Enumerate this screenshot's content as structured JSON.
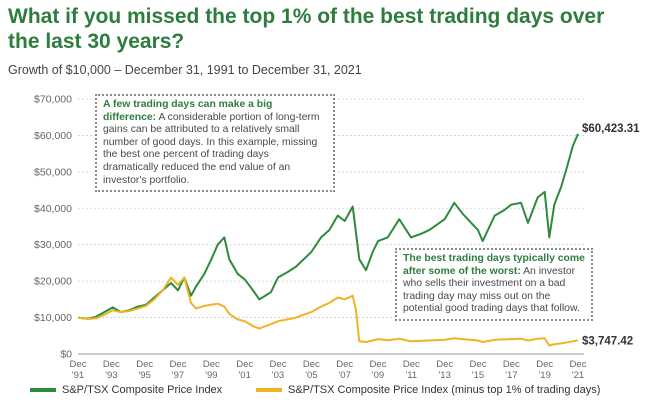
{
  "header": {
    "title": "What if you missed the top 1% of the best trading days over the last 30 years?",
    "subtitle": "Growth of $10,000 – December 31, 1991 to December 31, 2021"
  },
  "callouts": [
    {
      "highlight": "A few trading days can make a big difference:",
      "body": " A considerable portion of long-term gains can be attributed to a relatively small number of good days. In this example, missing the best one percent of trading days dramatically reduced the end value of an investor's portfolio."
    },
    {
      "highlight": "The best trading days typically come after some of the worst:",
      "body": " An investor who sells their investment on a bad trading day may miss out on the potential good trading days that follow."
    }
  ],
  "colors": {
    "green": "#2e8b3e",
    "gold": "#f0b323",
    "title": "#2e7d3e"
  },
  "chart_data": {
    "type": "line",
    "title": "What if you missed the top 1% of the best trading days over the last 30 years?",
    "subtitle": "Growth of $10,000 – December 31, 1991 to December 31, 2021",
    "ylim": [
      0,
      70000
    ],
    "xlim": [
      1991.92,
      2021.92
    ],
    "y_ticks": [
      {
        "value": 0,
        "label": "$0"
      },
      {
        "value": 10000,
        "label": "$10,000"
      },
      {
        "value": 20000,
        "label": "$20,000"
      },
      {
        "value": 30000,
        "label": "$30,000"
      },
      {
        "value": 40000,
        "label": "$40,000"
      },
      {
        "value": 50000,
        "label": "$50,000"
      },
      {
        "value": 60000,
        "label": "$60,000"
      },
      {
        "value": 70000,
        "label": "$70,000"
      }
    ],
    "x_ticks": [
      {
        "value": 1991.92,
        "line1": "Dec",
        "line2": "'91"
      },
      {
        "value": 1993.92,
        "line1": "Dec",
        "line2": "'93"
      },
      {
        "value": 1995.92,
        "line1": "Dec",
        "line2": "'95"
      },
      {
        "value": 1997.92,
        "line1": "Dec",
        "line2": "'97"
      },
      {
        "value": 1999.92,
        "line1": "Dec",
        "line2": "'99"
      },
      {
        "value": 2001.92,
        "line1": "Dec",
        "line2": "'01"
      },
      {
        "value": 2003.92,
        "line1": "Dec",
        "line2": "'03"
      },
      {
        "value": 2005.92,
        "line1": "Dec",
        "line2": "'05"
      },
      {
        "value": 2007.92,
        "line1": "Dec",
        "line2": "'07"
      },
      {
        "value": 2009.92,
        "line1": "Dec",
        "line2": "'09"
      },
      {
        "value": 2011.92,
        "line1": "Dec",
        "line2": "'11"
      },
      {
        "value": 2013.92,
        "line1": "Dec",
        "line2": "'13"
      },
      {
        "value": 2015.92,
        "line1": "Dec",
        "line2": "'15"
      },
      {
        "value": 2017.92,
        "line1": "Dec",
        "line2": "'17"
      },
      {
        "value": 2019.92,
        "line1": "Dec",
        "line2": "'19"
      },
      {
        "value": 2021.92,
        "line1": "Dec",
        "line2": "'21"
      }
    ],
    "grid": "horizontal dotted",
    "legend_position": "bottom",
    "series": [
      {
        "name": "S&P/TSX Composite Price Index",
        "color": "#2e8b3e",
        "end_label": "$60,423.31",
        "points": [
          [
            1991.92,
            10000
          ],
          [
            1992.5,
            9700
          ],
          [
            1993.0,
            10200
          ],
          [
            1993.5,
            11500
          ],
          [
            1994.0,
            12800
          ],
          [
            1994.5,
            11500
          ],
          [
            1995.0,
            12000
          ],
          [
            1995.5,
            13000
          ],
          [
            1996.0,
            13500
          ],
          [
            1996.5,
            15500
          ],
          [
            1997.0,
            17500
          ],
          [
            1997.5,
            19500
          ],
          [
            1997.92,
            17500
          ],
          [
            1998.3,
            21000
          ],
          [
            1998.7,
            16000
          ],
          [
            1999.0,
            18500
          ],
          [
            1999.5,
            22000
          ],
          [
            1999.92,
            26000
          ],
          [
            2000.3,
            30000
          ],
          [
            2000.7,
            32000
          ],
          [
            2001.0,
            26000
          ],
          [
            2001.5,
            22000
          ],
          [
            2001.92,
            20500
          ],
          [
            2002.5,
            17000
          ],
          [
            2002.8,
            15000
          ],
          [
            2003.5,
            17000
          ],
          [
            2003.92,
            21000
          ],
          [
            2004.5,
            22500
          ],
          [
            2005.0,
            24000
          ],
          [
            2005.92,
            28000
          ],
          [
            2006.5,
            32000
          ],
          [
            2007.0,
            34000
          ],
          [
            2007.5,
            38000
          ],
          [
            2007.92,
            36500
          ],
          [
            2008.4,
            40500
          ],
          [
            2008.8,
            26000
          ],
          [
            2009.2,
            23000
          ],
          [
            2009.6,
            28000
          ],
          [
            2009.92,
            31000
          ],
          [
            2010.5,
            32000
          ],
          [
            2011.2,
            37000
          ],
          [
            2011.9,
            32000
          ],
          [
            2012.5,
            33000
          ],
          [
            2013.0,
            34000
          ],
          [
            2013.92,
            37000
          ],
          [
            2014.5,
            41500
          ],
          [
            2015.0,
            38500
          ],
          [
            2015.92,
            34000
          ],
          [
            2016.2,
            31000
          ],
          [
            2016.92,
            38000
          ],
          [
            2017.5,
            39500
          ],
          [
            2017.92,
            41000
          ],
          [
            2018.5,
            41500
          ],
          [
            2018.92,
            36000
          ],
          [
            2019.5,
            43000
          ],
          [
            2019.92,
            44500
          ],
          [
            2020.2,
            32000
          ],
          [
            2020.5,
            41000
          ],
          [
            2020.92,
            46000
          ],
          [
            2021.3,
            52000
          ],
          [
            2021.6,
            57000
          ],
          [
            2021.92,
            60423.31
          ]
        ]
      },
      {
        "name": "S&P/TSX Composite Price Index (minus top 1% of trading days)",
        "color": "#f0b323",
        "end_label": "$3,747.42",
        "points": [
          [
            1991.92,
            10000
          ],
          [
            1992.5,
            9600
          ],
          [
            1993.0,
            9800
          ],
          [
            1993.5,
            10800
          ],
          [
            1994.0,
            12000
          ],
          [
            1994.5,
            11500
          ],
          [
            1995.0,
            11800
          ],
          [
            1995.5,
            12500
          ],
          [
            1996.0,
            13200
          ],
          [
            1996.5,
            15000
          ],
          [
            1997.0,
            17500
          ],
          [
            1997.5,
            21000
          ],
          [
            1997.92,
            19000
          ],
          [
            1998.3,
            21000
          ],
          [
            1998.7,
            14000
          ],
          [
            1999.0,
            12500
          ],
          [
            1999.5,
            13200
          ],
          [
            1999.92,
            13500
          ],
          [
            2000.3,
            13800
          ],
          [
            2000.7,
            13000
          ],
          [
            2001.0,
            11000
          ],
          [
            2001.5,
            9500
          ],
          [
            2001.92,
            9000
          ],
          [
            2002.5,
            7500
          ],
          [
            2002.8,
            7000
          ],
          [
            2003.5,
            8200
          ],
          [
            2003.92,
            9000
          ],
          [
            2004.5,
            9500
          ],
          [
            2005.0,
            10000
          ],
          [
            2005.92,
            11500
          ],
          [
            2006.5,
            13000
          ],
          [
            2007.0,
            14000
          ],
          [
            2007.5,
            15500
          ],
          [
            2007.92,
            15000
          ],
          [
            2008.4,
            16000
          ],
          [
            2008.6,
            12000
          ],
          [
            2008.8,
            3500
          ],
          [
            2009.2,
            3300
          ],
          [
            2009.6,
            3700
          ],
          [
            2009.92,
            4100
          ],
          [
            2010.5,
            3800
          ],
          [
            2011.2,
            4200
          ],
          [
            2011.9,
            3500
          ],
          [
            2012.5,
            3600
          ],
          [
            2013.0,
            3700
          ],
          [
            2013.92,
            3900
          ],
          [
            2014.5,
            4300
          ],
          [
            2015.0,
            4100
          ],
          [
            2015.92,
            3700
          ],
          [
            2016.2,
            3300
          ],
          [
            2016.92,
            3900
          ],
          [
            2017.5,
            4000
          ],
          [
            2017.92,
            4100
          ],
          [
            2018.5,
            4200
          ],
          [
            2018.92,
            3700
          ],
          [
            2019.5,
            4200
          ],
          [
            2019.92,
            4300
          ],
          [
            2020.2,
            2300
          ],
          [
            2020.5,
            2700
          ],
          [
            2020.92,
            2900
          ],
          [
            2021.3,
            3200
          ],
          [
            2021.6,
            3500
          ],
          [
            2021.92,
            3747.42
          ]
        ]
      }
    ]
  }
}
